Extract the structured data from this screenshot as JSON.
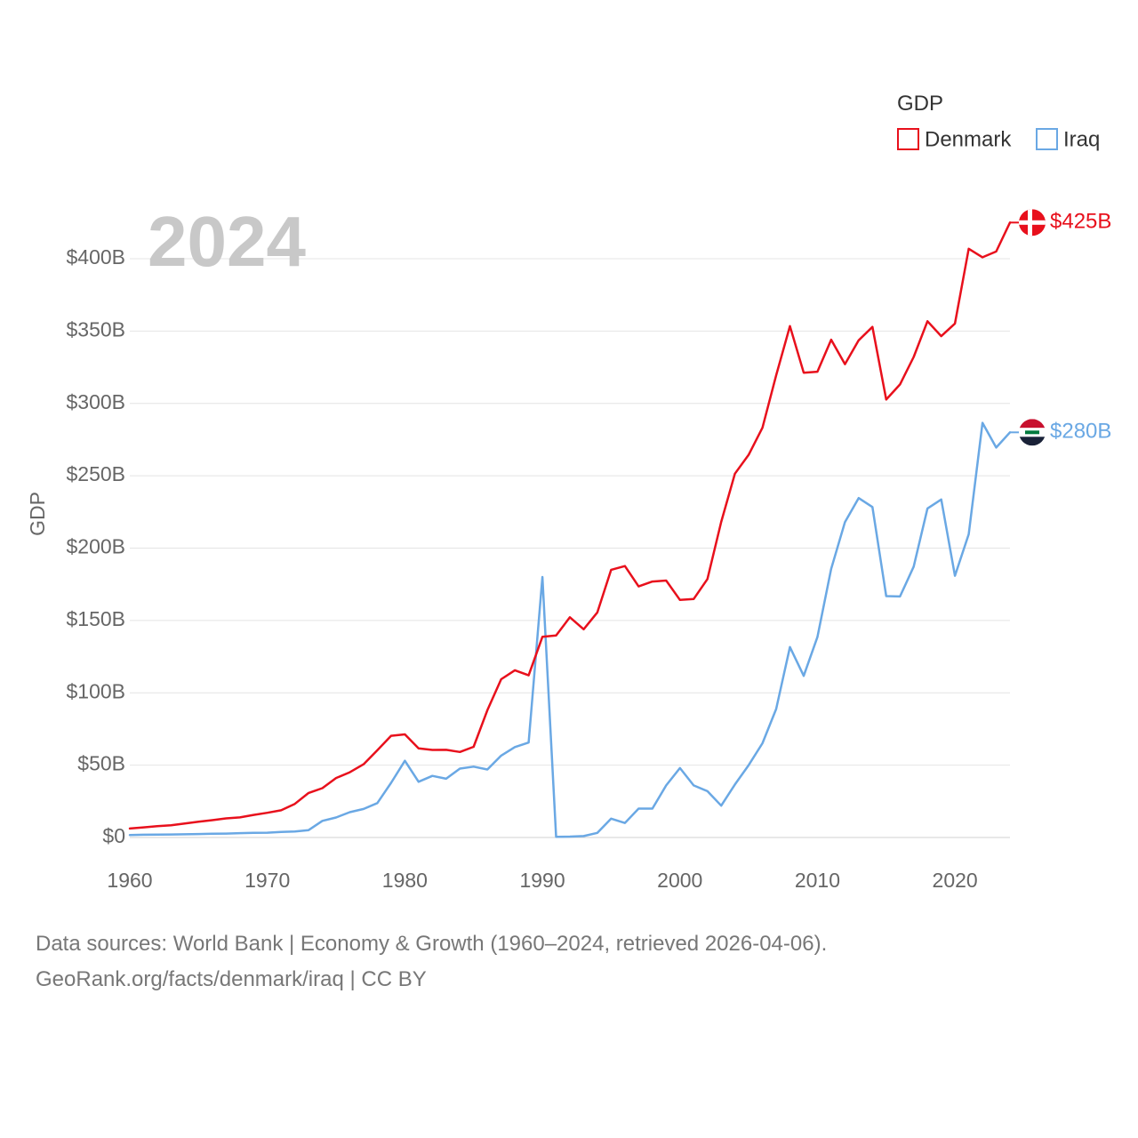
{
  "chart_data": {
    "type": "line",
    "year_label": "2024",
    "ylabel": "GDP",
    "legend_title": "GDP",
    "xlim": [
      1960,
      2024
    ],
    "ylim": [
      0,
      400
    ],
    "y_unit": "billions USD",
    "x_ticks": [
      "1960",
      "1970",
      "1980",
      "1990",
      "2000",
      "2010",
      "2020"
    ],
    "y_ticks": [
      {
        "value": 0,
        "label": "$0"
      },
      {
        "value": 50,
        "label": "$50B"
      },
      {
        "value": 100,
        "label": "$100B"
      },
      {
        "value": 150,
        "label": "$150B"
      },
      {
        "value": 200,
        "label": "$200B"
      },
      {
        "value": 250,
        "label": "$250B"
      },
      {
        "value": 300,
        "label": "$300B"
      },
      {
        "value": 350,
        "label": "$350B"
      },
      {
        "value": 400,
        "label": "$400B"
      }
    ],
    "x": [
      1960,
      1961,
      1962,
      1963,
      1964,
      1965,
      1966,
      1967,
      1968,
      1969,
      1970,
      1971,
      1972,
      1973,
      1974,
      1975,
      1976,
      1977,
      1978,
      1979,
      1980,
      1981,
      1982,
      1983,
      1984,
      1985,
      1986,
      1987,
      1988,
      1989,
      1990,
      1991,
      1992,
      1993,
      1994,
      1995,
      1996,
      1997,
      1998,
      1999,
      2000,
      2001,
      2002,
      2003,
      2004,
      2005,
      2006,
      2007,
      2008,
      2009,
      2010,
      2011,
      2012,
      2013,
      2014,
      2015,
      2016,
      2017,
      2018,
      2019,
      2020,
      2021,
      2022,
      2023,
      2024
    ],
    "series": [
      {
        "name": "Denmark",
        "color": "#e8101c",
        "end_label": "$425B",
        "flag": "denmark-flag",
        "values": [
          6.2,
          7.0,
          7.8,
          8.4,
          9.7,
          10.9,
          12.0,
          13.2,
          13.9,
          15.6,
          17.1,
          18.8,
          23.2,
          30.8,
          34.1,
          41.1,
          45.1,
          50.6,
          60.3,
          70.3,
          71.3,
          61.6,
          60.5,
          60.6,
          59.1,
          62.7,
          88.0,
          109.4,
          115.6,
          112.1,
          138.7,
          139.6,
          152.2,
          143.9,
          155.6,
          185.0,
          187.6,
          173.5,
          176.9,
          177.6,
          164.2,
          164.8,
          178.6,
          218.1,
          251.4,
          264.5,
          283.2,
          319.4,
          353.4,
          321.2,
          321.9,
          344.0,
          327.1,
          343.6,
          352.9,
          302.7,
          313.1,
          332.1,
          356.8,
          346.5,
          355.2,
          406.9,
          401.0,
          405.0,
          425.0
        ]
      },
      {
        "name": "Iraq",
        "color": "#6aa8e4",
        "end_label": "$280B",
        "flag": "iraq-flag",
        "values": [
          1.7,
          1.9,
          2.0,
          2.1,
          2.2,
          2.4,
          2.6,
          2.7,
          3.0,
          3.2,
          3.3,
          3.9,
          4.1,
          5.1,
          11.5,
          13.8,
          17.5,
          19.7,
          23.8,
          37.8,
          53.0,
          38.5,
          42.6,
          40.6,
          47.6,
          49.0,
          47.0,
          56.6,
          62.5,
          65.6,
          180.0,
          0.5,
          0.6,
          1.0,
          3.2,
          13.0,
          10.0,
          20.0,
          20.0,
          36.0,
          48.0,
          36.0,
          32.0,
          22.0,
          36.6,
          50.0,
          65.1,
          88.8,
          131.6,
          111.7,
          138.5,
          185.7,
          218.0,
          234.6,
          228.4,
          166.8,
          166.6,
          187.2,
          227.4,
          233.6,
          180.9,
          209.6,
          286.6,
          269.5,
          280.0
        ]
      }
    ]
  },
  "footer": {
    "line1": "Data sources: World Bank | Economy & Growth (1960–2024, retrieved 2026-04-06).",
    "line2": "GeoRank.org/facts/denmark/iraq | CC BY"
  }
}
